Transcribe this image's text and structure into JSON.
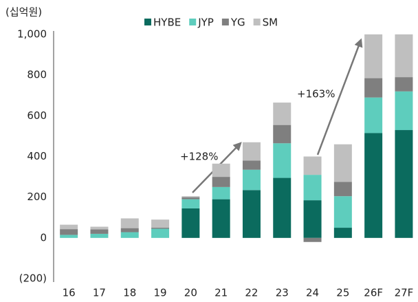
{
  "chart_data": {
    "type": "stacked_bar",
    "unit_label": "(십억원)",
    "categories": [
      "16",
      "17",
      "18",
      "19",
      "20",
      "21",
      "22",
      "23",
      "24",
      "25",
      "26F",
      "27F"
    ],
    "series": [
      {
        "name": "HYBE",
        "color": "#0b6b5e",
        "values": [
          0,
          0,
          0,
          0,
          145,
          190,
          235,
          295,
          185,
          50,
          515,
          530
        ]
      },
      {
        "name": "JYP",
        "color": "#5ecdbd",
        "values": [
          15,
          20,
          28,
          45,
          45,
          60,
          100,
          170,
          125,
          155,
          175,
          190
        ]
      },
      {
        "name": "YG",
        "color": "#7f7f7f",
        "values": [
          28,
          22,
          20,
          5,
          10,
          50,
          45,
          90,
          -20,
          70,
          95,
          70
        ]
      },
      {
        "name": "SM",
        "color": "#bfbfbf",
        "values": [
          22,
          13,
          48,
          40,
          5,
          65,
          90,
          110,
          90,
          185,
          215,
          210
        ]
      }
    ],
    "ylim": [
      -200,
      1000
    ],
    "yticks": [
      {
        "value": -200,
        "label": "(200)"
      },
      0,
      200,
      400,
      600,
      800,
      {
        "value": 1000,
        "label": "1,000"
      }
    ],
    "annotations": [
      "+128%",
      "+163%"
    ]
  }
}
